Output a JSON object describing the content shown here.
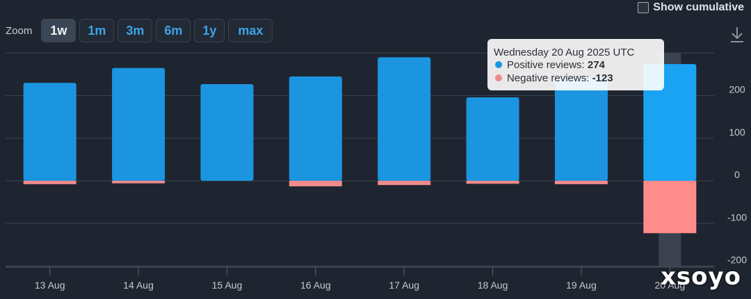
{
  "controls": {
    "show_cumulative_label": "Show cumulative",
    "show_cumulative_checked": false,
    "zoom_label": "Zoom",
    "zoom_options": [
      "1w",
      "1m",
      "3m",
      "6m",
      "1y",
      "max"
    ],
    "zoom_selected": "1w",
    "download_icon": "download-icon"
  },
  "colors": {
    "positive": "#1b95e0",
    "positive_highlight": "#1aa3f2",
    "negative": "#f08a8a",
    "negative_highlight": "#ff8b8b",
    "background": "#1f2530",
    "grid": "#3a4350"
  },
  "chart_data": {
    "type": "bar",
    "stacked": true,
    "categories": [
      "13 Aug",
      "14 Aug",
      "15 Aug",
      "16 Aug",
      "17 Aug",
      "18 Aug",
      "19 Aug",
      "20 Aug"
    ],
    "series": [
      {
        "name": "Positive reviews",
        "values": [
          230,
          265,
          227,
          245,
          290,
          196,
          240,
          274
        ]
      },
      {
        "name": "Negative reviews",
        "values": [
          -8,
          -6,
          0,
          -13,
          -10,
          -7,
          -8,
          -123
        ]
      }
    ],
    "y_ticks": [
      "200",
      "100",
      "0",
      "-100",
      "-200"
    ],
    "ylim": [
      -200,
      300
    ],
    "y_axis_position": "right",
    "grid": true,
    "highlighted_category": "20 Aug",
    "tooltip": {
      "title": "Wednesday 20 Aug 2025 UTC",
      "rows": [
        {
          "label": "Positive reviews: ",
          "value": "274"
        },
        {
          "label": "Negative reviews: ",
          "value": "-123"
        }
      ]
    }
  },
  "watermark": "xsoyo"
}
